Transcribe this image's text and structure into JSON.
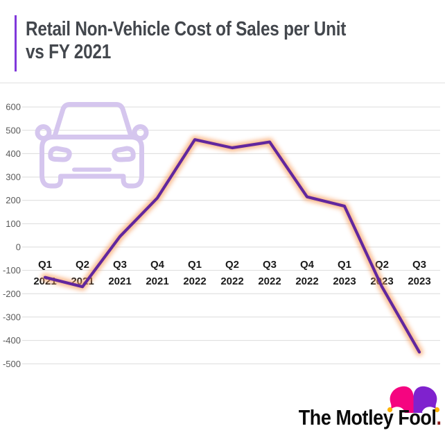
{
  "header": {
    "title_lines": [
      "Retail Non-Vehicle Cost of Sales per Unit",
      "vs FY 2021"
    ],
    "accent_color": "#8038DB",
    "title_color": "#43474D"
  },
  "chart_data": {
    "type": "line",
    "title": "Retail Non-Vehicle Cost of Sales per Unit vs FY 2021",
    "categories": [
      "Q1 2021",
      "Q2 2021",
      "Q3 2021",
      "Q4 2021",
      "Q1 2022",
      "Q2 2022",
      "Q3 2022",
      "Q4 2022",
      "Q1 2023",
      "Q2 2023",
      "Q3 2023"
    ],
    "values": [
      -130,
      -170,
      45,
      210,
      460,
      425,
      450,
      215,
      175,
      -170,
      -450
    ],
    "ylim": [
      -500,
      600
    ],
    "y_tick_step": 100,
    "y_tick_labels": [
      "600",
      "500",
      "400",
      "300",
      "200",
      "100",
      "0",
      "-100",
      "-200",
      "-300",
      "-400",
      "-500"
    ],
    "grid": true,
    "legend": "none",
    "line_color": "#61279E",
    "glow_color": "#F79C5C",
    "gridline_color": "#DBDBDB",
    "axis_label_color": "#595959",
    "x_label_color": "#1A1A1A",
    "watermark": "car-front-outline",
    "watermark_color": "#D5C6EE"
  },
  "footer": {
    "brand": "The Motley Fool",
    "period": ".",
    "text_color": "#0B0B0B",
    "period_color": "#8E1B1B",
    "hat": {
      "left_lobe": "#F50580",
      "right_lobe": "#7F22CE",
      "balls": "#FFB404"
    }
  }
}
